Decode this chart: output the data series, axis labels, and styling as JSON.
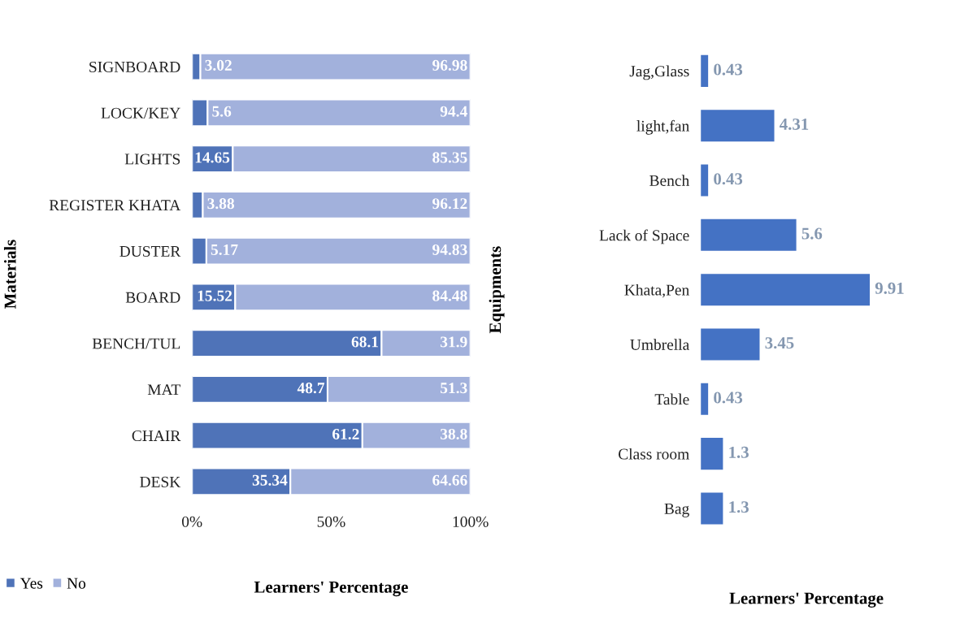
{
  "chart_data": [
    {
      "type": "bar",
      "orientation": "horizontal",
      "stacked": true,
      "xlabel": "Learners' Percentage",
      "ylabel": "Materials",
      "categories": [
        "SIGNBOARD",
        "LOCK/KEY",
        "LIGHTS",
        "REGISTER KHATA",
        "DUSTER",
        "BOARD",
        "BENCH/TUL",
        "MAT",
        "CHAIR",
        "DESK"
      ],
      "series": [
        {
          "name": "Yes",
          "color": "#4f73b8",
          "values": [
            3.02,
            5.6,
            14.65,
            3.88,
            5.17,
            15.52,
            68.1,
            48.7,
            61.2,
            35.34
          ]
        },
        {
          "name": "No",
          "color": "#a2b1dc",
          "values": [
            96.98,
            94.4,
            85.35,
            96.12,
            94.83,
            84.48,
            31.9,
            51.3,
            38.8,
            64.66
          ]
        }
      ],
      "xlim": [
        0,
        100
      ],
      "xticks": [
        {
          "value": 0,
          "label": "0%"
        },
        {
          "value": 50,
          "label": "50%"
        },
        {
          "value": 100,
          "label": "100%"
        }
      ],
      "data_labels": true,
      "legend": "bottom left",
      "grid": false
    },
    {
      "type": "bar",
      "orientation": "horizontal",
      "xlabel": "Learners' Percentage",
      "ylabel": "Equipments",
      "categories": [
        "Jag,Glass",
        "light,fan",
        "Bench",
        "Lack of Space",
        "Khata,Pen",
        "Umbrella",
        "Table",
        "Class room",
        "Bag"
      ],
      "values": [
        0.43,
        4.31,
        0.43,
        5.6,
        9.91,
        3.45,
        0.43,
        1.3,
        1.3
      ],
      "color": "#4472c4",
      "data_labels": true,
      "tick_labels": "y",
      "grid": false
    }
  ]
}
